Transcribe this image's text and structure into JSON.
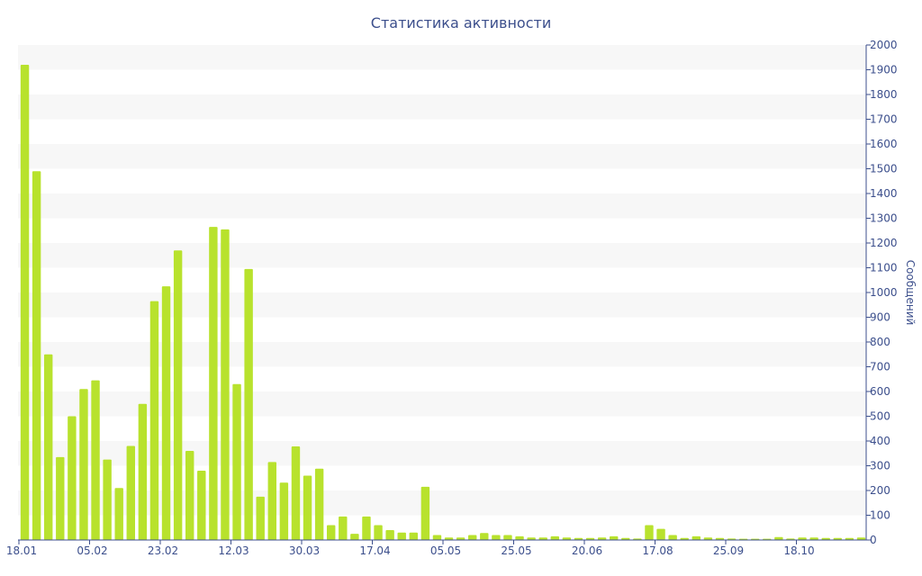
{
  "chart_data": {
    "type": "bar",
    "title": "Статистика активности",
    "ylabel": "Сообщений",
    "xlabel": "",
    "ylim": [
      0,
      2000
    ],
    "y_ticks": [
      0,
      100,
      200,
      300,
      400,
      500,
      600,
      700,
      800,
      900,
      1000,
      1100,
      1200,
      1300,
      1400,
      1500,
      1600,
      1700,
      1800,
      1900,
      2000
    ],
    "x_tick_labels": [
      {
        "label": "18.01",
        "index": 0
      },
      {
        "label": "05.02",
        "index": 6
      },
      {
        "label": "23.02",
        "index": 12
      },
      {
        "label": "12.03",
        "index": 18
      },
      {
        "label": "30.03",
        "index": 24
      },
      {
        "label": "17.04",
        "index": 30
      },
      {
        "label": "05.05",
        "index": 36
      },
      {
        "label": "25.05",
        "index": 42
      },
      {
        "label": "20.06",
        "index": 48
      },
      {
        "label": "17.08",
        "index": 54
      },
      {
        "label": "25.09",
        "index": 60
      },
      {
        "label": "18.10",
        "index": 66
      }
    ],
    "values": [
      1920,
      1490,
      750,
      335,
      500,
      610,
      645,
      325,
      210,
      380,
      550,
      965,
      1025,
      1170,
      360,
      280,
      1265,
      1255,
      630,
      1095,
      175,
      315,
      232,
      378,
      260,
      288,
      60,
      95,
      25,
      95,
      60,
      40,
      30,
      30,
      215,
      20,
      10,
      10,
      20,
      28,
      20,
      20,
      15,
      10,
      10,
      15,
      10,
      8,
      8,
      10,
      15,
      8,
      6,
      60,
      45,
      20,
      8,
      15,
      10,
      8,
      6,
      5,
      5,
      5,
      12,
      6,
      10,
      10,
      8,
      8,
      8,
      10
    ],
    "grid": "alternating horizontal bands",
    "y_axis_position": "right",
    "bar_color": "#b8e22d",
    "text_color": "#3c4f8c",
    "band_color": "#f7f7f7"
  }
}
